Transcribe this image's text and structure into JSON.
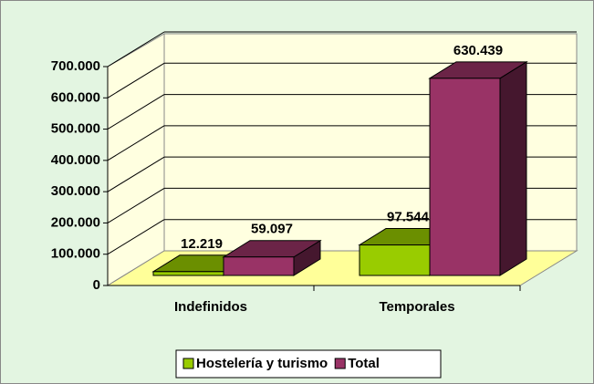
{
  "chart_data": {
    "type": "bar3d",
    "categories": [
      "Indefinidos",
      "Temporales"
    ],
    "series": [
      {
        "name": "Hostelería y turismo",
        "color": "#99cc00",
        "values": [
          12219,
          97544
        ],
        "value_labels": [
          "12.219",
          "97.544"
        ]
      },
      {
        "name": "Total",
        "color": "#993366",
        "values": [
          59097,
          630439
        ],
        "value_labels": [
          "59.097",
          "630.439"
        ]
      }
    ],
    "ylim": [
      0,
      700000
    ],
    "yticks": [
      0,
      {
        "value": 100000,
        "label": "100.000"
      },
      {
        "value": 200000,
        "label": "200.000"
      },
      {
        "value": 300000,
        "label": "300.000"
      },
      {
        "value": 400000,
        "label": "400.000"
      },
      {
        "value": 500000,
        "label": "500.000"
      },
      {
        "value": 600000,
        "label": "600.000"
      },
      {
        "value": 700000,
        "label": "700.000"
      }
    ],
    "grid": true,
    "legend": "bottom"
  }
}
